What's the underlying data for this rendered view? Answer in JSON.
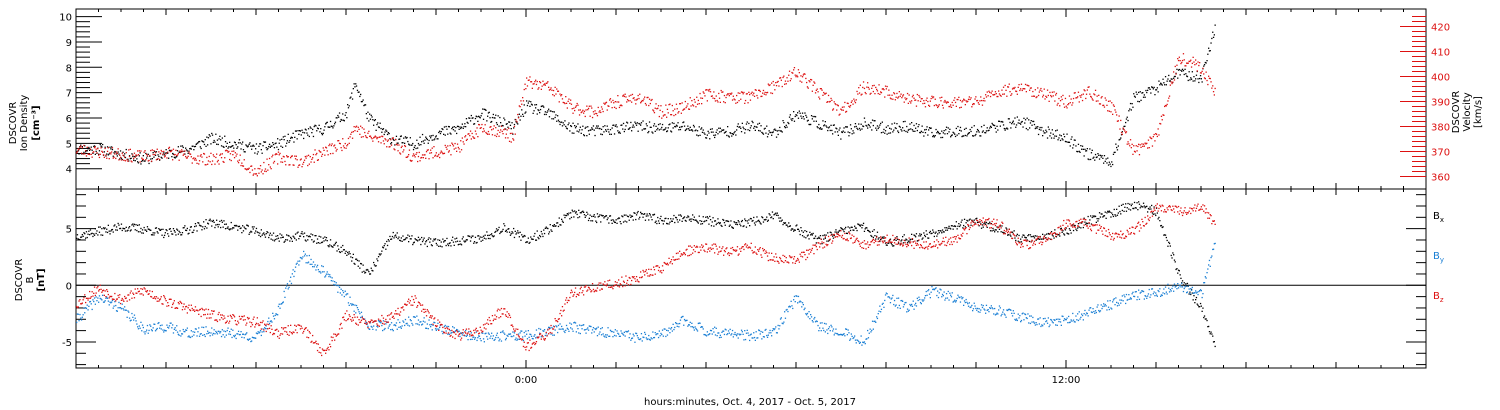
{
  "xaxis": {
    "label": "hours:minutes, Oct.  4, 2017 - Oct.  5, 2017",
    "tick_labels": [
      "0:00",
      "12:00"
    ],
    "hour_range": [
      -10,
      20
    ]
  },
  "chart_data": [
    {
      "type": "scatter",
      "panel": "top",
      "ylabel": [
        "DSCOVR",
        "Ion  Density",
        "[cm⁻³]"
      ],
      "y2label": [
        "DSCOVR",
        "Velocity",
        "[km/s]"
      ],
      "ylim": [
        3.2,
        10.3
      ],
      "y2lim": [
        355,
        427
      ],
      "yticks": [
        "4",
        "5",
        "6",
        "7",
        "8",
        "9",
        "10"
      ],
      "y2ticks": [
        "360",
        "370",
        "380",
        "390",
        "400",
        "410",
        "420"
      ],
      "series": [
        {
          "color": "#000000",
          "axis": "left",
          "x": [
            -10,
            -9.5,
            -9,
            -8.5,
            -8,
            -7.5,
            -7,
            -6.5,
            -6,
            -5.5,
            -5,
            -4.5,
            -4,
            -3.8,
            -3.5,
            -3,
            -2.5,
            -2,
            -1.5,
            -1,
            -0.5,
            -0.3,
            0,
            0.5,
            1,
            1.5,
            2,
            2.5,
            3,
            3.5,
            4,
            4.5,
            5,
            5.5,
            6,
            6.5,
            7,
            7.5,
            8,
            8.5,
            9,
            9.5,
            10,
            10.5,
            11,
            11.5,
            12,
            12.5,
            13,
            13.5,
            14,
            14.5,
            15,
            15.3
          ],
          "y": [
            4.8,
            4.8,
            4.6,
            4.4,
            4.6,
            4.8,
            5.2,
            5.0,
            4.8,
            5.0,
            5.4,
            5.6,
            6.2,
            7.4,
            6.0,
            5.2,
            5.0,
            5.4,
            5.6,
            6.2,
            5.8,
            5.6,
            6.5,
            6.2,
            5.6,
            5.5,
            5.6,
            5.7,
            5.6,
            5.7,
            5.4,
            5.5,
            5.7,
            5.4,
            6.2,
            5.8,
            5.4,
            5.8,
            5.6,
            5.7,
            5.4,
            5.5,
            5.5,
            5.7,
            5.9,
            5.5,
            5.2,
            4.6,
            4.3,
            6.8,
            7.2,
            7.8,
            7.6,
            9.6
          ]
        },
        {
          "color": "#dd1111",
          "axis": "right",
          "x": [
            -10,
            -9.5,
            -9,
            -8.5,
            -8,
            -7.5,
            -7,
            -6.5,
            -6,
            -5.5,
            -5,
            -4.5,
            -4,
            -3.8,
            -3.5,
            -3,
            -2.5,
            -2,
            -1.5,
            -1,
            -0.5,
            -0.3,
            0,
            0.5,
            1,
            1.5,
            2,
            2.5,
            3,
            3.5,
            4,
            4.5,
            5,
            5.5,
            6,
            6.5,
            7,
            7.5,
            8,
            8.5,
            9,
            9.5,
            10,
            10.5,
            11,
            11.5,
            12,
            12.5,
            13,
            13.5,
            14,
            14.5,
            15,
            15.3
          ],
          "y": [
            371,
            370,
            369,
            368,
            370,
            368,
            367,
            369,
            362,
            368,
            366,
            370,
            374,
            380,
            376,
            374,
            368,
            370,
            372,
            380,
            378,
            376,
            398,
            396,
            388,
            386,
            390,
            392,
            386,
            388,
            393,
            392,
            392,
            396,
            402,
            394,
            386,
            396,
            394,
            391,
            390,
            390,
            390,
            394,
            396,
            393,
            390,
            394,
            388,
            370,
            376,
            408,
            404,
            394
          ]
        }
      ]
    },
    {
      "type": "scatter",
      "panel": "bottom",
      "ylabel": [
        "DSCOVR",
        "B",
        "[nT]"
      ],
      "ylim": [
        -7.3,
        8.5
      ],
      "yticks": [
        "-5",
        "0",
        "5"
      ],
      "zero_line": true,
      "series": [
        {
          "name": "Bx",
          "label_main": "B",
          "label_sub": "x",
          "color": "#000000",
          "x": [
            -10,
            -9.5,
            -9,
            -8.5,
            -8,
            -7.5,
            -7,
            -6.5,
            -6,
            -5.5,
            -5,
            -4.5,
            -4,
            -3.5,
            -3,
            -2.5,
            -2,
            -1.5,
            -1,
            -0.5,
            0,
            0.5,
            1,
            1.5,
            2,
            2.5,
            3,
            3.5,
            4,
            4.5,
            5,
            5.5,
            6,
            6.5,
            7,
            7.5,
            8,
            8.5,
            9,
            9.5,
            10,
            10.5,
            11,
            11.5,
            12,
            12.5,
            13,
            13.5,
            14,
            14.5,
            15,
            15.3
          ],
          "y": [
            4.4,
            4.8,
            5.2,
            5.0,
            4.6,
            5.0,
            5.6,
            5.2,
            4.8,
            4.2,
            4.4,
            4.0,
            3.0,
            1.0,
            4.4,
            4.0,
            3.8,
            4.0,
            4.2,
            5.2,
            4.0,
            5.0,
            6.4,
            6.0,
            5.8,
            6.2,
            5.8,
            6.0,
            5.8,
            5.4,
            5.6,
            6.2,
            5.0,
            4.0,
            4.8,
            5.2,
            3.8,
            4.2,
            4.6,
            5.4,
            5.6,
            5.0,
            4.2,
            4.4,
            4.8,
            5.8,
            6.4,
            7.2,
            6.6,
            1.0,
            -2.0,
            -5.0
          ]
        },
        {
          "name": "By",
          "label_main": "B",
          "label_sub": "y",
          "color": "#1a7fd4",
          "x": [
            -10,
            -9.5,
            -9,
            -8.5,
            -8,
            -7.5,
            -7,
            -6.5,
            -6,
            -5.5,
            -5,
            -4.5,
            -4,
            -3.5,
            -3,
            -2.5,
            -2,
            -1.5,
            -1,
            -0.5,
            0,
            0.5,
            1,
            1.5,
            2,
            2.5,
            3,
            3.5,
            4,
            4.5,
            5,
            5.5,
            6,
            6.5,
            7,
            7.5,
            8,
            8.5,
            9,
            9.5,
            10,
            10.5,
            11,
            11.5,
            12,
            12.5,
            13,
            13.5,
            14,
            14.5,
            15,
            15.3
          ],
          "y": [
            -3.0,
            -1.0,
            -2.0,
            -3.8,
            -3.6,
            -4.2,
            -4.0,
            -4.2,
            -4.6,
            -2.0,
            2.8,
            1.2,
            -1.0,
            -3.4,
            -3.6,
            -3.0,
            -3.6,
            -4.2,
            -4.6,
            -4.4,
            -4.4,
            -4.0,
            -3.6,
            -4.0,
            -4.2,
            -4.6,
            -4.4,
            -3.0,
            -4.0,
            -4.2,
            -4.4,
            -4.2,
            -1.0,
            -3.6,
            -4.0,
            -5.0,
            -1.0,
            -2.0,
            -0.5,
            -1.0,
            -2.0,
            -2.2,
            -2.8,
            -3.2,
            -3.0,
            -2.4,
            -1.6,
            -0.8,
            -0.6,
            0.0,
            -0.8,
            3.8
          ]
        },
        {
          "name": "Bz",
          "label_main": "B",
          "label_sub": "z",
          "color": "#dd1111",
          "x": [
            -10,
            -9.5,
            -9,
            -8.5,
            -8,
            -7.5,
            -7,
            -6.5,
            -6,
            -5.5,
            -5,
            -4.5,
            -4,
            -3.5,
            -3,
            -2.5,
            -2,
            -1.5,
            -1,
            -0.5,
            0,
            0.5,
            1,
            1.5,
            2,
            2.5,
            3,
            3.5,
            4,
            4.5,
            5,
            5.5,
            6,
            6.5,
            7,
            7.5,
            8,
            8.5,
            9,
            9.5,
            10,
            10.5,
            11,
            11.5,
            12,
            12.5,
            13,
            13.5,
            14,
            14.5,
            15,
            15.3
          ],
          "y": [
            -1.6,
            -0.2,
            -1.2,
            -0.4,
            -1.4,
            -2.0,
            -2.6,
            -3.0,
            -3.2,
            -4.2,
            -3.6,
            -6.0,
            -2.6,
            -3.4,
            -2.8,
            -1.2,
            -3.4,
            -4.4,
            -3.8,
            -2.0,
            -5.4,
            -4.2,
            -0.6,
            -0.2,
            0.2,
            0.8,
            1.6,
            3.0,
            3.4,
            3.0,
            3.4,
            2.4,
            2.2,
            3.6,
            4.6,
            3.6,
            4.2,
            3.8,
            3.6,
            4.0,
            5.8,
            5.4,
            3.6,
            4.0,
            5.6,
            5.4,
            4.4,
            4.8,
            6.8,
            6.6,
            7.0,
            5.4
          ]
        }
      ]
    }
  ]
}
